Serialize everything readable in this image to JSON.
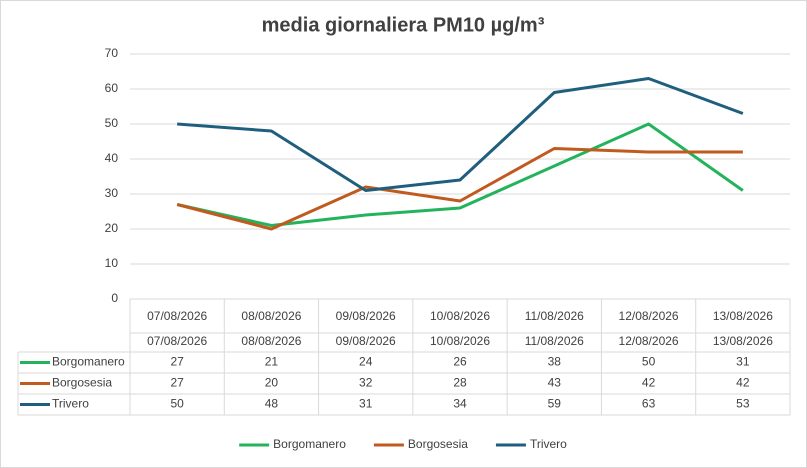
{
  "chart_data": {
    "type": "line",
    "title": "media giornaliera PM10 µg/m³",
    "categories": [
      "07/08/2026",
      "08/08/2026",
      "09/08/2026",
      "10/08/2026",
      "11/08/2026",
      "12/08/2026",
      "13/08/2026"
    ],
    "series": [
      {
        "name": "Borgomanero",
        "color": "#22b35b",
        "values": [
          27,
          21,
          24,
          26,
          38,
          50,
          31
        ]
      },
      {
        "name": "Borgosesia",
        "color": "#c05a1f",
        "values": [
          27,
          20,
          32,
          28,
          43,
          42,
          42
        ]
      },
      {
        "name": "Trivero",
        "color": "#1f5f7d",
        "values": [
          50,
          48,
          31,
          34,
          59,
          63,
          53
        ]
      }
    ],
    "ylim": [
      0,
      70
    ],
    "yticks": [
      0,
      10,
      20,
      30,
      40,
      50,
      60,
      70
    ],
    "grid": true,
    "legend": "bottom"
  }
}
